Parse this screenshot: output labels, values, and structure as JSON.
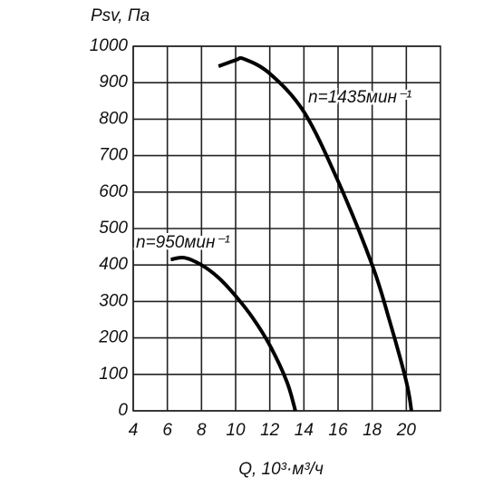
{
  "chart_data": {
    "type": "line",
    "title": "Psv, Па",
    "x_label": "Q, 10³·м³/ч",
    "xlim": [
      4,
      22
    ],
    "xticks": [
      4,
      6,
      8,
      10,
      12,
      14,
      16,
      18,
      20
    ],
    "ylim": [
      0,
      1000
    ],
    "yticks": [
      0,
      100,
      200,
      300,
      400,
      500,
      600,
      700,
      800,
      900,
      1000
    ],
    "grid": true,
    "series": [
      {
        "name": "n=1435мин⁻¹",
        "color": "#000000",
        "x": [
          9,
          10,
          10.5,
          12,
          14,
          16,
          18,
          19,
          20,
          20.3
        ],
        "values": [
          945,
          962,
          965,
          925,
          820,
          630,
          400,
          250,
          80,
          0
        ]
      },
      {
        "name": "n=950мин⁻¹",
        "color": "#000000",
        "x": [
          6.2,
          7,
          8,
          9,
          10,
          11,
          12,
          13,
          13.5
        ],
        "values": [
          415,
          420,
          400,
          365,
          315,
          255,
          180,
          80,
          0
        ]
      }
    ]
  }
}
